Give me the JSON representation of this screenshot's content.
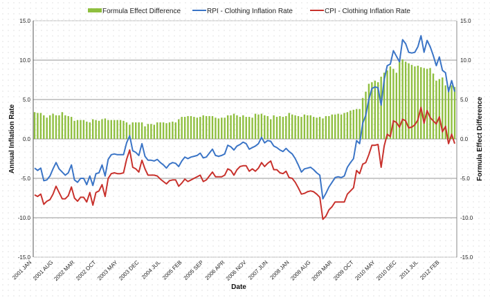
{
  "chart_data": {
    "type": "bar+line",
    "xlabel": "Date",
    "ylabel": "Annual Inflation Rate",
    "y2label": "Formula Effect Difference",
    "ylim": [
      -15,
      15
    ],
    "y2lim": [
      -15,
      15
    ],
    "yticks": [
      "-15.0",
      "-10.0",
      "-5.0",
      "0.0",
      "5.0",
      "10.0",
      "15.0"
    ],
    "grid": true,
    "legend_position": "top",
    "x_tick_labels": [
      "2001 JAN",
      "2001 AUG",
      "2002 MAR",
      "2002 OCT",
      "2003 MAY",
      "2003 DEC",
      "2004 JUL",
      "2005 FEB",
      "2005 SEP",
      "2006 APR",
      "2006 NOV",
      "2007 JUN",
      "2008 JAN",
      "2008 AUG",
      "2009 MAR",
      "2009 OCT",
      "2010 MAY",
      "2010 DEC",
      "2011 JUL",
      "2012 FEB"
    ],
    "x_tick_every_months": 7,
    "series": [
      {
        "name": "Formula Effect Difference",
        "type": "bar",
        "axis": "right",
        "color": "#8fbf3f",
        "values": [
          3.4,
          3.3,
          3.3,
          3.0,
          2.7,
          3.0,
          3.2,
          3.0,
          3.0,
          3.4,
          3.0,
          2.9,
          2.8,
          2.3,
          2.4,
          2.4,
          2.4,
          2.2,
          2.1,
          2.5,
          2.4,
          2.3,
          2.5,
          2.6,
          2.4,
          2.4,
          2.4,
          2.4,
          2.4,
          2.3,
          2.1,
          1.8,
          2.1,
          2.1,
          2.1,
          2.1,
          1.6,
          1.9,
          1.9,
          1.8,
          2.1,
          2.1,
          2.1,
          2.0,
          2.1,
          2.2,
          2.1,
          2.5,
          2.8,
          2.8,
          2.9,
          2.9,
          2.8,
          2.7,
          2.8,
          3.0,
          2.9,
          2.9,
          2.9,
          2.7,
          2.6,
          2.7,
          2.7,
          3.0,
          3.0,
          3.2,
          3.0,
          2.8,
          3.0,
          2.8,
          2.8,
          2.7,
          3.2,
          3.1,
          3.2,
          3.0,
          2.9,
          2.5,
          3.0,
          2.8,
          2.9,
          2.8,
          2.9,
          3.3,
          3.1,
          3.0,
          2.9,
          2.8,
          3.1,
          3.0,
          3.0,
          2.8,
          2.7,
          2.8,
          2.6,
          2.9,
          2.9,
          3.1,
          3.1,
          3.2,
          3.1,
          3.3,
          3.4,
          3.6,
          3.7,
          3.8,
          3.8,
          5.2,
          6.0,
          7.0,
          7.2,
          7.4,
          7.2,
          7.9,
          8.4,
          8.7,
          9.2,
          8.9,
          8.4,
          9.9,
          10.1,
          9.8,
          9.6,
          9.4,
          9.2,
          9.3,
          9.1,
          9.0,
          8.9,
          9.0,
          8.3,
          7.4,
          7.6,
          7.8,
          6.8,
          6.6,
          6.8,
          6.6
        ]
      },
      {
        "name": "RPI - Clothing Inflation Rate",
        "type": "line",
        "axis": "left",
        "color": "#3a74c6",
        "values": [
          -3.7,
          -4.0,
          -3.7,
          -5.3,
          -5.2,
          -4.7,
          -3.8,
          -3.0,
          -3.8,
          -4.2,
          -4.6,
          -4.3,
          -3.3,
          -5.2,
          -5.5,
          -5.0,
          -5.0,
          -5.8,
          -4.7,
          -5.9,
          -4.4,
          -4.3,
          -3.3,
          -4.7,
          -2.6,
          -2.0,
          -1.9,
          -2.0,
          -2.0,
          -2.0,
          -0.5,
          0.4,
          -1.5,
          -1.7,
          -2.1,
          -0.6,
          -2.2,
          -2.7,
          -2.7,
          -2.8,
          -2.6,
          -3.0,
          -3.3,
          -3.7,
          -3.2,
          -3.0,
          -3.1,
          -3.5,
          -2.8,
          -2.3,
          -2.5,
          -2.3,
          -2.2,
          -2.1,
          -1.8,
          -2.4,
          -2.3,
          -1.8,
          -1.3,
          -2.1,
          -2.2,
          -2.1,
          -1.9,
          -0.8,
          -1.0,
          -1.4,
          -0.9,
          -0.7,
          -0.4,
          -0.6,
          -1.3,
          -1.1,
          -0.9,
          -0.6,
          0.2,
          -0.5,
          -0.2,
          -0.3,
          -0.9,
          -1.1,
          -1.4,
          -1.6,
          -1.2,
          -1.6,
          -1.9,
          -2.5,
          -3.3,
          -4.2,
          -3.8,
          -3.7,
          -3.6,
          -3.9,
          -4.3,
          -4.6,
          -7.6,
          -6.9,
          -6.1,
          -5.5,
          -4.9,
          -4.8,
          -4.9,
          -4.7,
          -3.6,
          -3.0,
          -2.5,
          -0.2,
          -0.6,
          2.0,
          3.0,
          5.0,
          6.4,
          6.6,
          6.5,
          4.3,
          7.5,
          9.3,
          9.5,
          11.2,
          10.5,
          9.8,
          12.6,
          12.1,
          11.0,
          10.9,
          11.0,
          11.7,
          13.1,
          11.0,
          12.5,
          11.7,
          10.6,
          9.3,
          10.4,
          8.7,
          8.4,
          6.0,
          7.4,
          6.0
        ]
      },
      {
        "name": "CPI - Clothing Inflation Rate",
        "type": "line",
        "axis": "left",
        "color": "#c8312c",
        "values": [
          -7.1,
          -7.3,
          -7.0,
          -8.3,
          -7.9,
          -7.7,
          -7.0,
          -6.0,
          -6.8,
          -7.6,
          -7.6,
          -7.2,
          -6.1,
          -7.5,
          -7.9,
          -7.4,
          -7.4,
          -8.0,
          -6.8,
          -8.4,
          -6.8,
          -6.6,
          -5.8,
          -7.3,
          -5.0,
          -4.4,
          -4.3,
          -4.4,
          -4.4,
          -4.3,
          -2.6,
          -1.4,
          -3.6,
          -3.8,
          -4.2,
          -2.7,
          -3.8,
          -4.6,
          -4.6,
          -4.6,
          -4.7,
          -5.1,
          -5.4,
          -5.7,
          -5.3,
          -5.2,
          -5.2,
          -6.0,
          -5.6,
          -5.1,
          -5.4,
          -5.2,
          -5.0,
          -4.8,
          -4.6,
          -5.4,
          -5.2,
          -4.7,
          -4.2,
          -4.8,
          -4.8,
          -4.8,
          -4.6,
          -3.8,
          -4.0,
          -4.6,
          -3.9,
          -3.5,
          -3.4,
          -3.4,
          -4.1,
          -3.8,
          -4.1,
          -3.7,
          -3.0,
          -3.5,
          -3.1,
          -2.8,
          -3.9,
          -3.9,
          -4.3,
          -4.4,
          -4.1,
          -4.9,
          -5.0,
          -5.5,
          -6.2,
          -7.0,
          -6.9,
          -6.7,
          -6.6,
          -6.7,
          -7.0,
          -7.4,
          -10.2,
          -9.8,
          -9.0,
          -8.6,
          -8.0,
          -8.0,
          -8.0,
          -8.0,
          -7.0,
          -6.6,
          -6.2,
          -4.0,
          -4.4,
          -3.2,
          -3.0,
          -2.0,
          -0.8,
          -0.8,
          -0.7,
          -3.6,
          -0.9,
          0.6,
          0.3,
          2.3,
          2.1,
          1.5,
          2.5,
          2.3,
          1.4,
          1.5,
          1.8,
          2.4,
          4.0,
          2.0,
          3.6,
          2.7,
          2.3,
          1.9,
          2.8,
          0.9,
          1.6,
          -0.6,
          0.6,
          -0.6
        ]
      }
    ]
  }
}
